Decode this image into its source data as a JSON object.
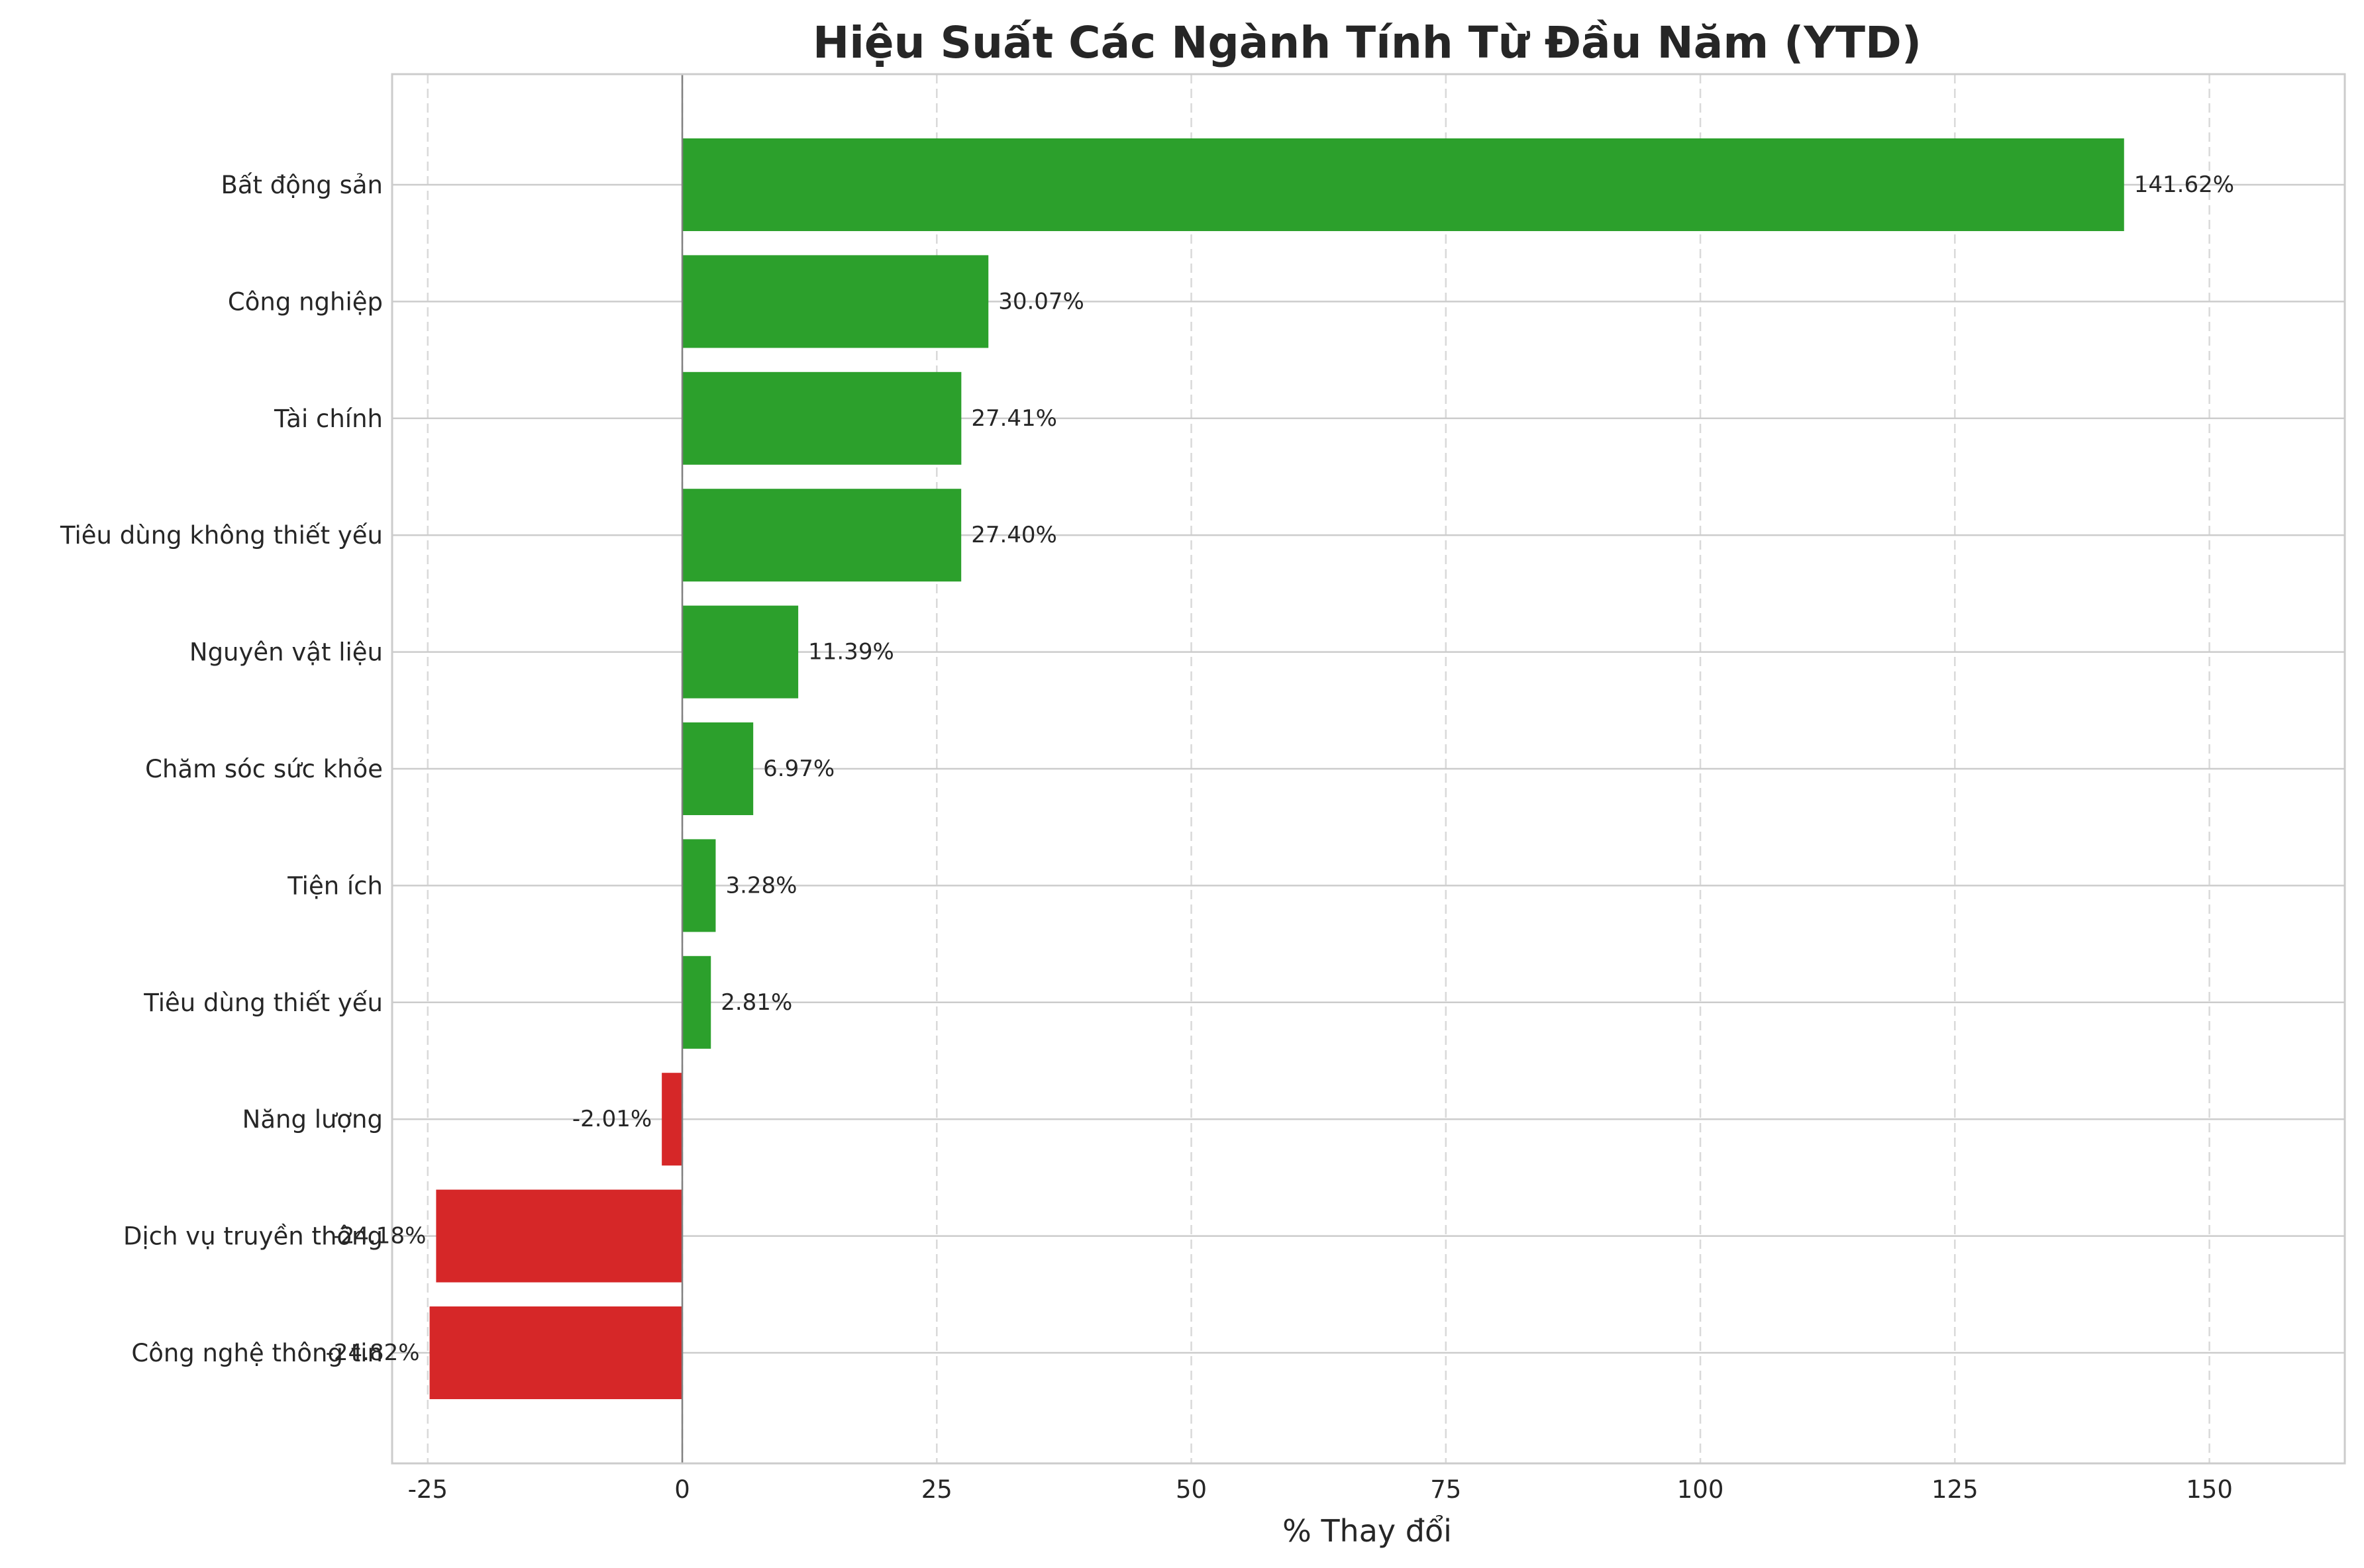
{
  "chart_data": {
    "type": "bar",
    "orientation": "horizontal",
    "title": "Hiệu Suất Các Ngành Tính Từ Đầu Năm (YTD)",
    "xlabel": "% Thay đổi",
    "ylabel": "",
    "xlim": [
      -28.5,
      163.3
    ],
    "xticks": [
      -25,
      0,
      25,
      50,
      75,
      100,
      125,
      150
    ],
    "xtick_labels": [
      "-25",
      "0",
      "25",
      "50",
      "75",
      "100",
      "125",
      "150"
    ],
    "grid": true,
    "categories": [
      "Bất động sản",
      "Công nghiệp",
      "Tài chính",
      "Tiêu dùng không thiết yếu",
      "Nguyên vật liệu",
      "Chăm sóc sức khỏe",
      "Tiện ích",
      "Tiêu dùng thiết yếu",
      "Năng lượng",
      "Dịch vụ truyền thông",
      "Công nghệ thông tin"
    ],
    "values": [
      141.62,
      30.07,
      27.41,
      27.4,
      11.39,
      6.97,
      3.28,
      2.81,
      -2.01,
      -24.18,
      -24.82
    ],
    "data_labels": [
      "141.62%",
      "30.07%",
      "27.41%",
      "27.40%",
      "11.39%",
      "6.97%",
      "3.28%",
      "2.81%",
      "-2.01%",
      "-24.18%",
      "-24.82%"
    ],
    "colors": {
      "positive": "#2ca02c",
      "negative": "#d62728",
      "zero_line": "#808080",
      "grid_vertical": "#d9d9d9",
      "grid_horizontal": "#cccccc",
      "frame": "#cccccc",
      "text": "#262626"
    }
  }
}
